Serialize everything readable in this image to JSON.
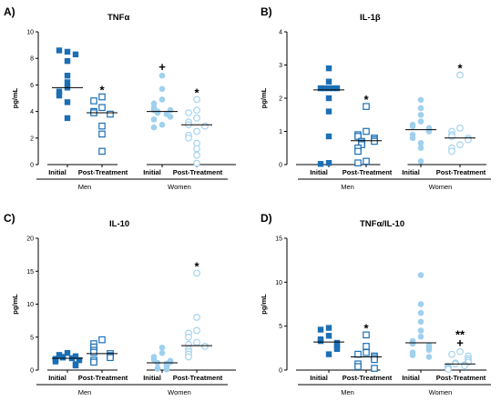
{
  "chart_data": [
    {
      "type": "scatter",
      "panel_letter": "A)",
      "title": "TNFα",
      "ylabel": "pg/mL",
      "ylim": [
        0,
        10
      ],
      "yticks": [
        "0",
        "2",
        "4",
        "6",
        "8",
        "10"
      ],
      "tick_values": [
        0,
        2,
        4,
        6,
        8,
        10
      ],
      "category_labels": [
        "Initial",
        "Post-Treatment",
        "Initial",
        "Post-Treatment"
      ],
      "groups": [
        "Men",
        "Women"
      ],
      "colors": {
        "men": "#1b6fb5",
        "women": "#9fd0ee"
      },
      "series": [
        {
          "group": "Men",
          "timepoint": "Initial",
          "marker": "square-filled",
          "median": 5.8,
          "annotation": "",
          "values": [
            8.5,
            8.6,
            8.3,
            7.8,
            6.7,
            6.2,
            5.8,
            5.5,
            5.2,
            4.7,
            3.5
          ]
        },
        {
          "group": "Men",
          "timepoint": "Post-Treatment",
          "marker": "square-open",
          "median": 3.9,
          "annotation": "*",
          "values": [
            5.1,
            4.8,
            4.3,
            4.0,
            3.9,
            3.8,
            2.9,
            2.3,
            1.0
          ]
        },
        {
          "group": "Women",
          "timepoint": "Initial",
          "marker": "circle-filled",
          "median": 4.0,
          "annotation": "+",
          "values": [
            6.7,
            5.7,
            4.9,
            4.6,
            4.3,
            4.1,
            4.1,
            4.0,
            3.9,
            3.8,
            3.6,
            3.4,
            3.0,
            2.8
          ]
        },
        {
          "group": "Women",
          "timepoint": "Post-Treatment",
          "marker": "circle-open",
          "median": 3.0,
          "annotation": "*",
          "values": [
            4.9,
            4.1,
            3.9,
            3.5,
            3.2,
            3.0,
            2.9,
            2.5,
            2.2,
            2.0,
            1.6,
            1.2,
            0.7,
            0.1
          ]
        }
      ]
    },
    {
      "type": "scatter",
      "panel_letter": "B)",
      "title": "IL-1β",
      "ylabel": "pg/mL",
      "ylim": [
        0,
        4
      ],
      "yticks": [
        "0",
        "1",
        "2",
        "3",
        "4"
      ],
      "tick_values": [
        0,
        1,
        2,
        3,
        4
      ],
      "category_labels": [
        "Initial",
        "Post-Treatment",
        "Initial",
        "Post-Treatment"
      ],
      "groups": [
        "Men",
        "Women"
      ],
      "colors": {
        "men": "#1b6fb5",
        "women": "#9fd0ee"
      },
      "series": [
        {
          "group": "Men",
          "timepoint": "Initial",
          "marker": "square-filled",
          "median": 2.25,
          "annotation": "",
          "values": [
            2.9,
            2.5,
            2.3,
            2.3,
            2.3,
            2.3,
            2.3,
            2.0,
            1.6,
            0.85,
            0.05,
            0.02
          ]
        },
        {
          "group": "Men",
          "timepoint": "Post-Treatment",
          "marker": "square-open",
          "median": 0.72,
          "annotation": "*",
          "values": [
            1.75,
            1.0,
            0.9,
            0.85,
            0.8,
            0.75,
            0.7,
            0.7,
            0.65,
            0.6,
            0.5,
            0.4,
            0.1,
            0.05
          ]
        },
        {
          "group": "Women",
          "timepoint": "Initial",
          "marker": "circle-filled",
          "median": 1.05,
          "annotation": "",
          "values": [
            1.95,
            1.7,
            1.5,
            1.3,
            1.2,
            1.15,
            1.1,
            1.05,
            1.0,
            0.9,
            0.8,
            0.65,
            0.5,
            0.1
          ]
        },
        {
          "group": "Women",
          "timepoint": "Post-Treatment",
          "marker": "circle-open",
          "median": 0.8,
          "annotation": "*",
          "values": [
            2.7,
            1.1,
            1.0,
            0.9,
            0.85,
            0.8,
            0.75,
            0.6,
            0.5,
            0.4
          ]
        }
      ]
    },
    {
      "type": "scatter",
      "panel_letter": "C)",
      "title": "IL-10",
      "ylabel": "pg/mL",
      "ylim": [
        0,
        20
      ],
      "yticks": [
        "0",
        "5",
        "10",
        "15",
        "20"
      ],
      "tick_values": [
        0,
        5,
        10,
        15,
        20
      ],
      "category_labels": [
        "Initial",
        "Post-Treatment",
        "Initial",
        "Post-Treatment"
      ],
      "groups": [
        "Men",
        "Women"
      ],
      "colors": {
        "men": "#1b6fb5",
        "women": "#9fd0ee"
      },
      "series": [
        {
          "group": "Men",
          "timepoint": "Initial",
          "marker": "square-filled",
          "median": 1.8,
          "annotation": "",
          "values": [
            2.6,
            2.3,
            2.1,
            2.0,
            1.9,
            1.8,
            1.7,
            1.6,
            1.5,
            1.3,
            0.9,
            0.7
          ]
        },
        {
          "group": "Men",
          "timepoint": "Post-Treatment",
          "marker": "square-open",
          "median": 2.5,
          "annotation": "",
          "values": [
            4.6,
            4.0,
            3.5,
            3.0,
            2.7,
            2.5,
            2.2,
            1.9,
            1.5,
            1.2
          ]
        },
        {
          "group": "Women",
          "timepoint": "Initial",
          "marker": "circle-filled",
          "median": 1.1,
          "annotation": "",
          "values": [
            3.4,
            2.6,
            2.0,
            1.6,
            1.4,
            1.2,
            1.1,
            1.0,
            0.9,
            0.7,
            0.5,
            0.3,
            0.2,
            0.1
          ]
        },
        {
          "group": "Women",
          "timepoint": "Post-Treatment",
          "marker": "circle-open",
          "median": 3.7,
          "annotation": "*",
          "values": [
            14.7,
            8.0,
            6.0,
            5.6,
            5.0,
            4.2,
            3.9,
            3.6,
            3.2,
            2.8,
            2.4,
            2.0
          ]
        }
      ]
    },
    {
      "type": "scatter",
      "panel_letter": "D)",
      "title": "TNFα/IL-10",
      "ylabel": "pg/mL",
      "ylim": [
        0,
        15
      ],
      "yticks": [
        "0",
        "5",
        "10",
        "15"
      ],
      "tick_values": [
        0,
        5,
        10,
        15
      ],
      "category_labels": [
        "Initial",
        "Post-Treatment",
        "Initial",
        "Post-Treatment"
      ],
      "groups": [
        "Men",
        "Women"
      ],
      "colors": {
        "men": "#1b6fb5",
        "women": "#9fd0ee"
      },
      "series": [
        {
          "group": "Men",
          "timepoint": "Initial",
          "marker": "square-filled",
          "median": 3.2,
          "annotation": "",
          "values": [
            4.8,
            4.6,
            3.9,
            3.5,
            3.3,
            3.1,
            2.8,
            2.6,
            2.4,
            1.8
          ]
        },
        {
          "group": "Men",
          "timepoint": "Post-Treatment",
          "marker": "square-open",
          "median": 1.5,
          "annotation": "*",
          "values": [
            4.0,
            2.7,
            2.0,
            1.8,
            1.6,
            1.4,
            1.2,
            0.7,
            0.4,
            0.2
          ]
        },
        {
          "group": "Women",
          "timepoint": "Initial",
          "marker": "circle-filled",
          "median": 3.1,
          "annotation": "",
          "values": [
            10.8,
            7.5,
            6.5,
            5.5,
            4.5,
            3.8,
            3.3,
            3.0,
            2.8,
            2.6,
            2.3,
            2.0,
            1.7,
            1.5
          ]
        },
        {
          "group": "Women",
          "timepoint": "Post-Treatment",
          "marker": "circle-open",
          "median": 0.7,
          "annotation": "**\n+",
          "values": [
            2.1,
            1.8,
            1.6,
            1.3,
            1.1,
            0.9,
            0.8,
            0.7,
            0.6,
            0.5,
            0.4,
            0.3,
            0.2,
            0.1
          ]
        }
      ]
    }
  ]
}
